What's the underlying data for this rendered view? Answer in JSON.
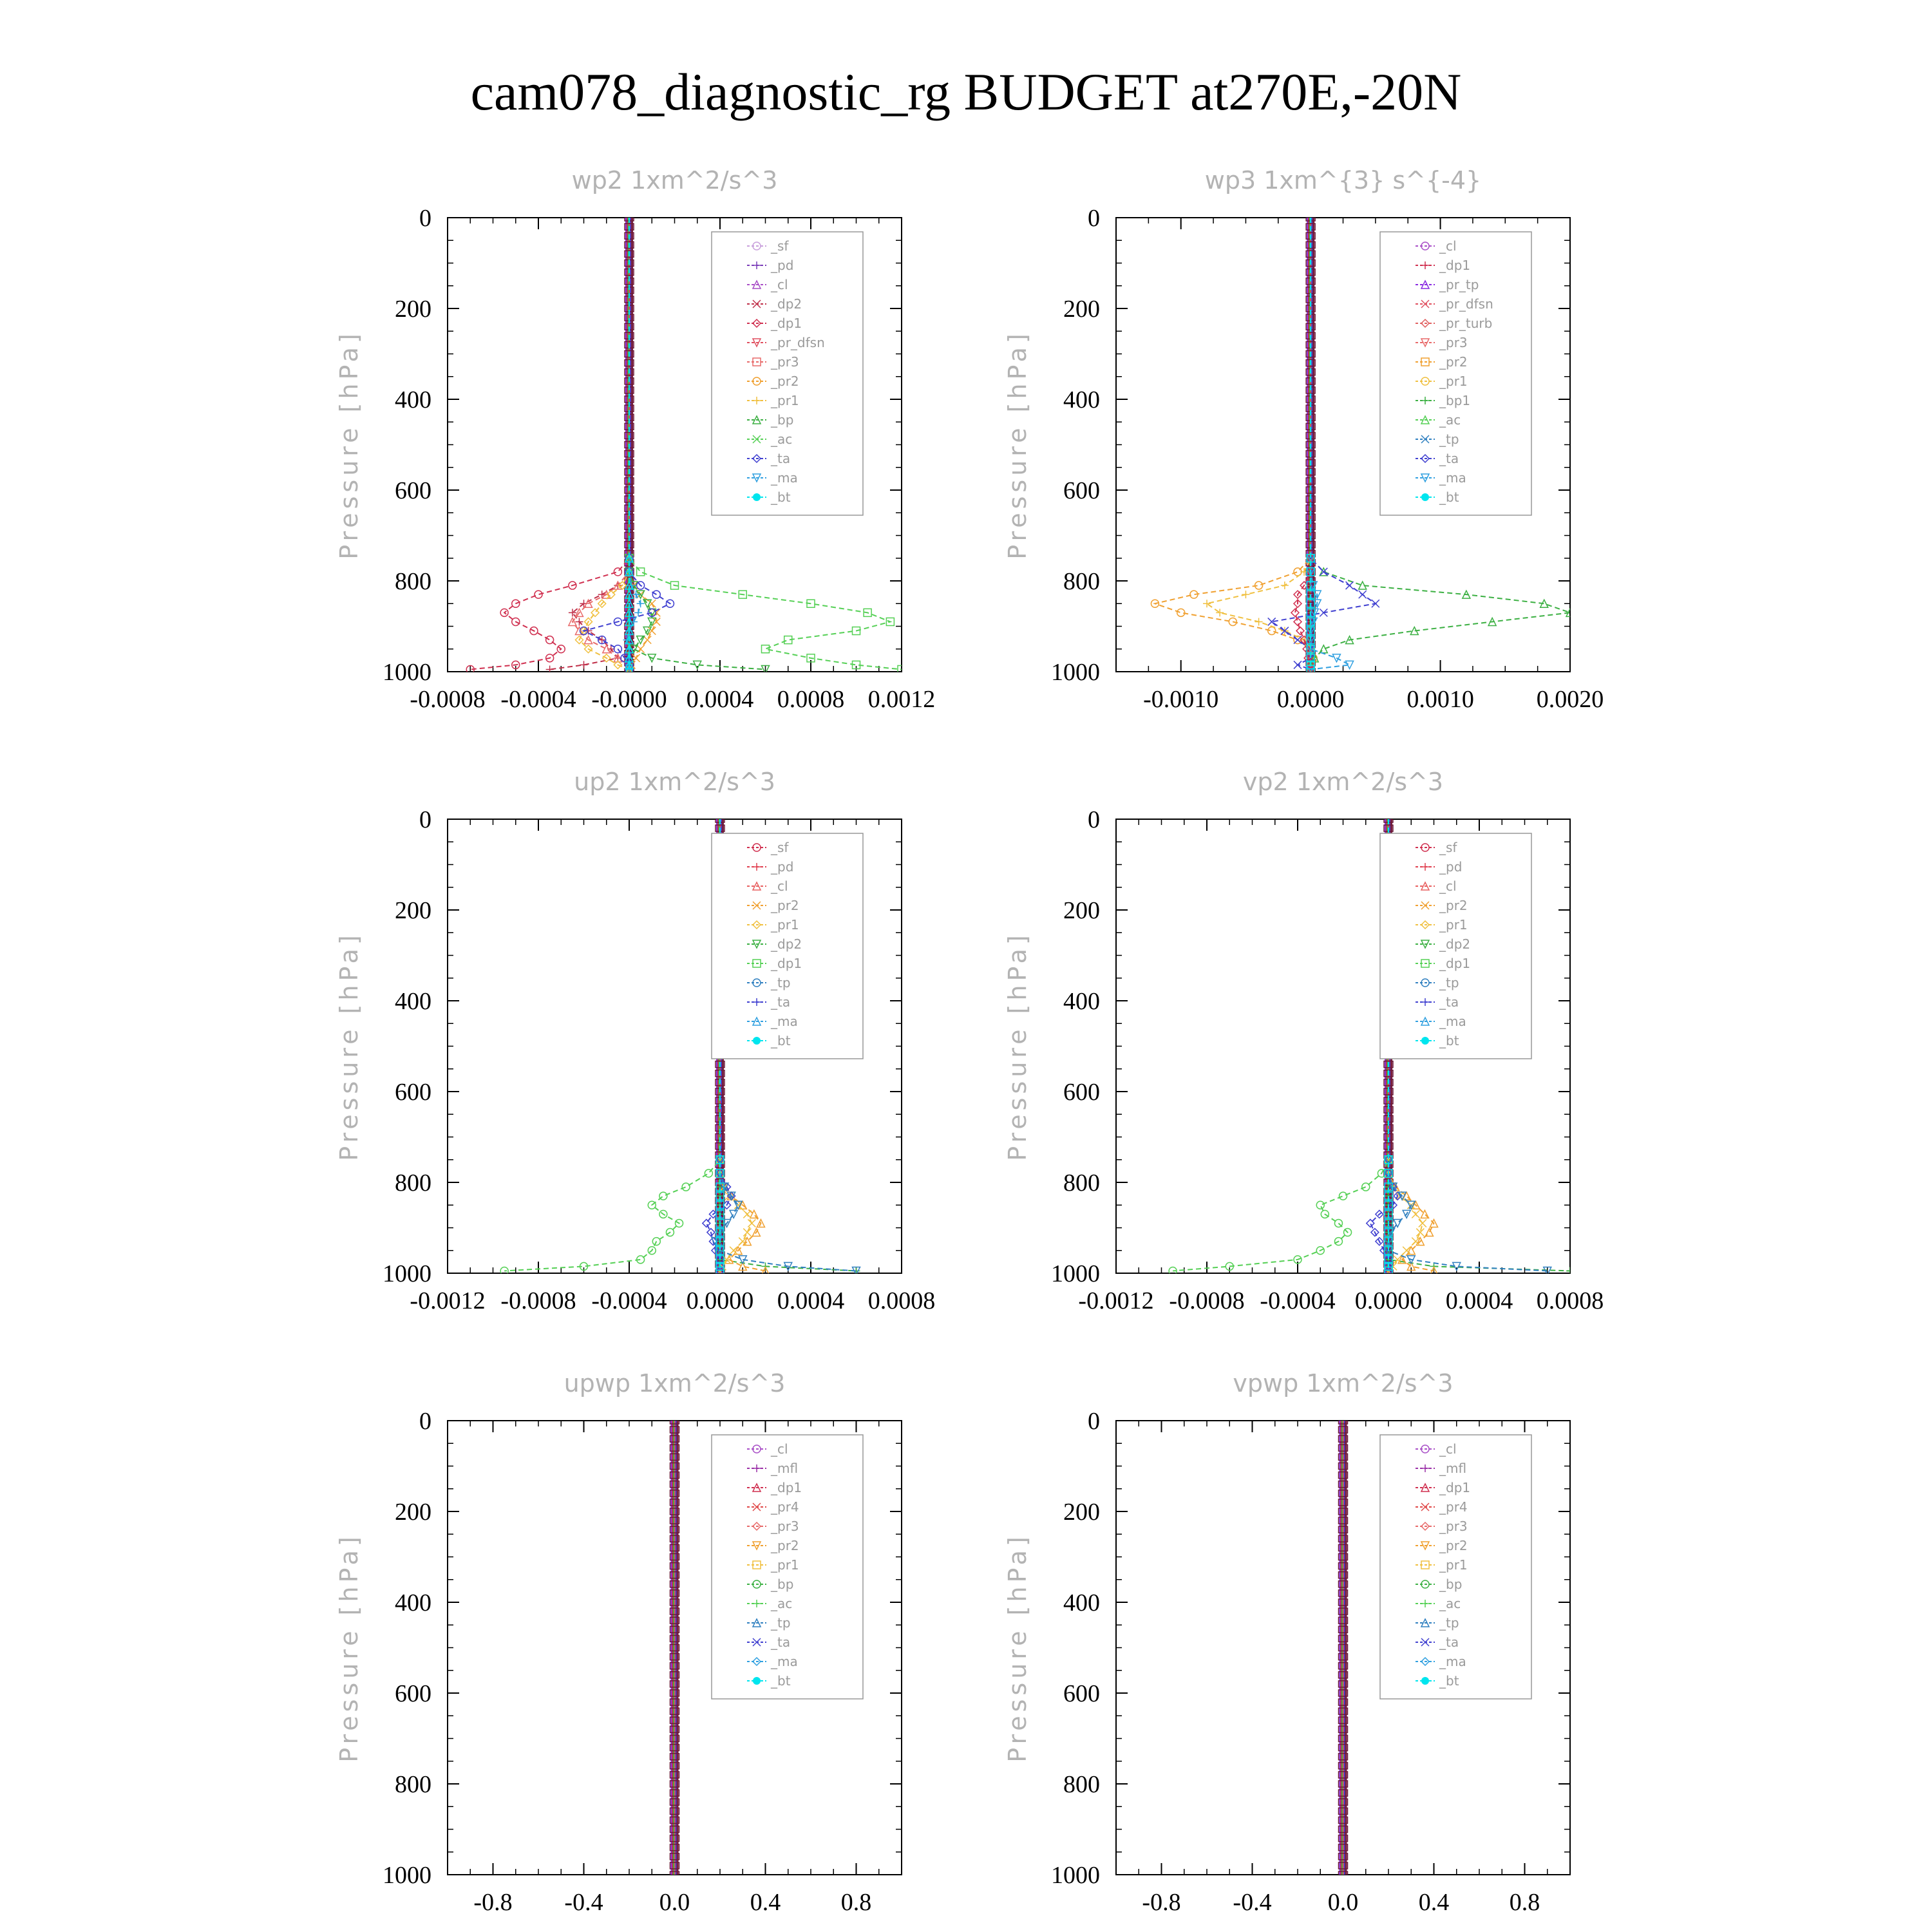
{
  "title": "cam078_diagnostic_rg  BUDGET at270E,-20N",
  "colors": {
    "_sf": "#c9a0dc",
    "_pd": "#7a3db8",
    "_cl": "#a94fc7",
    "_mfl": "#9b30a8",
    "_dp2": "#c0304a",
    "_dp1": "#d03050",
    "_pr_tp": "#8a2be2",
    "_pr_dfsn": "#e05060",
    "_pr_turb": "#e06060",
    "_pr4": "#e04848",
    "_pr3": "#e86a6a",
    "_pr2": "#f0a030",
    "_pr1": "#f0c040",
    "_bp": "#3cb043",
    "_bp1": "#3cb043",
    "_ac": "#55d055",
    "_tp": "#3080c0",
    "_ta": "#4040d0",
    "_ma": "#30a0e0",
    "_bt": "#00e5ee",
    "up_sf": "#d03050",
    "up_pd": "#e04050",
    "up_cl": "#e86060",
    "up_dp2": "#3cb043",
    "up_dp1": "#55d055"
  },
  "chart_data": [
    {
      "type": "line",
      "title": "wp2   1xm^2/s^3",
      "ylabel": "Pressure [hPa]",
      "ylim": [
        0,
        1000
      ],
      "y_inverted": true,
      "xlim": [
        -0.0008,
        0.0012
      ],
      "xticks": [
        "-0.0008",
        "-0.0004",
        "-0.0000",
        "0.0004",
        "0.0008",
        "0.0012"
      ],
      "xtick_values": [
        -0.0008,
        -0.0004,
        0,
        0.0004,
        0.0008,
        0.0012
      ],
      "yticks": [
        "0",
        "200",
        "400",
        "600",
        "800",
        "1000"
      ],
      "pressure": [
        750,
        780,
        810,
        830,
        850,
        870,
        890,
        910,
        930,
        950,
        970,
        985,
        995
      ],
      "legend": [
        "_sf",
        "_pd",
        "_cl",
        "_dp2",
        "_dp1",
        "_pr_dfsn",
        "_pr3",
        "_pr2",
        "_pr1",
        "_bp",
        "_ac",
        "_ta",
        "_ma",
        "_bt"
      ],
      "series": [
        {
          "name": "_dp1",
          "values": [
            0,
            -5e-05,
            -0.00025,
            -0.0004,
            -0.0005,
            -0.00055,
            -0.0005,
            -0.00042,
            -0.00035,
            -0.0003,
            -0.00035,
            -0.0005,
            -0.0007
          ]
        },
        {
          "name": "_dp2",
          "values": [
            0,
            0,
            -5e-05,
            -0.00012,
            -0.0002,
            -0.00025,
            -0.00022,
            -0.00018,
            -0.00012,
            -8e-05,
            -5e-05,
            -0.0002,
            -0.00035
          ]
        },
        {
          "name": "_pr3",
          "values": [
            0,
            0,
            -5e-05,
            -0.0001,
            -0.00018,
            -0.00022,
            -0.00025,
            -0.00022,
            -0.00018,
            -0.0001,
            -5e-05,
            0,
            0
          ]
        },
        {
          "name": "_pr2",
          "values": [
            0,
            0,
            2e-05,
            5e-05,
            0.0001,
            0.00012,
            0.00012,
            0.0001,
            8e-05,
            5e-05,
            3e-05,
            1e-05,
            0
          ]
        },
        {
          "name": "_pr1",
          "values": [
            0,
            0,
            -3e-05,
            -8e-05,
            -0.00012,
            -0.00015,
            -0.00018,
            -0.0002,
            -0.00022,
            -0.00018,
            -0.0001,
            -5e-05,
            0
          ]
        },
        {
          "name": "_bp",
          "values": [
            0,
            0,
            2e-05,
            5e-05,
            8e-05,
            0.0001,
            0.0001,
            8e-05,
            5e-05,
            2e-05,
            0.0001,
            0.0003,
            0.0006
          ]
        },
        {
          "name": "_ac",
          "values": [
            0,
            5e-05,
            0.0002,
            0.0005,
            0.0008,
            0.00105,
            0.00115,
            0.001,
            0.0007,
            0.0006,
            0.0008,
            0.001,
            0.0012
          ]
        },
        {
          "name": "_ta",
          "values": [
            0,
            0,
            5e-05,
            0.00012,
            0.00018,
            0.0001,
            -5e-05,
            -0.0002,
            -0.00012,
            -5e-05,
            -2e-05,
            0,
            0
          ]
        },
        {
          "name": "_ma",
          "values": [
            0,
            0,
            1e-05,
            3e-05,
            5e-05,
            4e-05,
            2e-05,
            0,
            -1e-05,
            0,
            0,
            0,
            0
          ]
        },
        {
          "name": "_bt",
          "values": [
            0,
            0,
            0,
            0,
            0,
            0,
            0,
            0,
            0,
            0,
            0,
            0,
            0
          ]
        }
      ]
    },
    {
      "type": "line",
      "title": "wp3   1xm^{3} s^{-4}",
      "ylabel": "Pressure [hPa]",
      "ylim": [
        0,
        1000
      ],
      "y_inverted": true,
      "xlim": [
        -0.0015,
        0.002
      ],
      "xticks": [
        "-0.0010",
        "0.0000",
        "0.0010",
        "0.0020"
      ],
      "xtick_values": [
        -0.001,
        0,
        0.001,
        0.002
      ],
      "yticks": [
        "0",
        "200",
        "400",
        "600",
        "800",
        "1000"
      ],
      "pressure": [
        750,
        780,
        810,
        830,
        850,
        870,
        890,
        910,
        930,
        950,
        970,
        985,
        995
      ],
      "legend": [
        "_cl",
        "_dp1",
        "_pr_tp",
        "_pr_dfsn",
        "_pr_turb",
        "_pr3",
        "_pr2",
        "_pr1",
        "_bp1",
        "_ac",
        "_tp",
        "_ta",
        "_ma",
        "_bt"
      ],
      "series": [
        {
          "name": "_pr2",
          "values": [
            0,
            -0.0001,
            -0.0004,
            -0.0009,
            -0.0012,
            -0.001,
            -0.0006,
            -0.0003,
            -0.0001,
            0,
            2e-05,
            0,
            0
          ]
        },
        {
          "name": "_pr1",
          "values": [
            0,
            -5e-05,
            -0.0002,
            -0.0005,
            -0.0008,
            -0.0007,
            -0.0004,
            -0.0002,
            -5e-05,
            0,
            0,
            0,
            0
          ]
        },
        {
          "name": "_bp1",
          "values": [
            0,
            0.0001,
            0.0004,
            0.0012,
            0.0018,
            0.002,
            0.0014,
            0.0008,
            0.0003,
            0.0001,
            3e-05,
            0,
            0
          ]
        },
        {
          "name": "_ta",
          "values": [
            0,
            0.0001,
            0.0003,
            0.0004,
            0.0005,
            0.0001,
            -0.0003,
            -0.0002,
            -0.0001,
            0,
            0,
            -0.0001,
            0
          ]
        },
        {
          "name": "_dp1",
          "values": [
            0,
            0,
            -5e-05,
            -0.0001,
            -0.0001,
            -0.00012,
            -0.0001,
            -8e-05,
            -5e-05,
            -3e-05,
            -2e-05,
            0,
            0
          ]
        },
        {
          "name": "_ma",
          "values": [
            0,
            0,
            2e-05,
            5e-05,
            5e-05,
            3e-05,
            2e-05,
            0,
            0,
            0,
            0.0002,
            0.0003,
            0
          ]
        },
        {
          "name": "_bt",
          "values": [
            0,
            0,
            0,
            0,
            0,
            0,
            0,
            0,
            0,
            0,
            0,
            0,
            0
          ]
        }
      ]
    },
    {
      "type": "line",
      "title": "up2   1xm^2/s^3",
      "ylabel": "Pressure [hPa]",
      "ylim": [
        0,
        1000
      ],
      "y_inverted": true,
      "xlim": [
        -0.0012,
        0.0008
      ],
      "xticks": [
        "-0.0012",
        "-0.0008",
        "-0.0004",
        "0.0000",
        "0.0004",
        "0.0008"
      ],
      "xtick_values": [
        -0.0012,
        -0.0008,
        -0.0004,
        0,
        0.0004,
        0.0008
      ],
      "yticks": [
        "0",
        "200",
        "400",
        "600",
        "800",
        "1000"
      ],
      "pressure": [
        750,
        780,
        810,
        830,
        850,
        870,
        890,
        910,
        930,
        950,
        970,
        985,
        995
      ],
      "legend": [
        "_sf",
        "_pd",
        "_cl",
        "_pr2",
        "_pr1",
        "_dp2",
        "_dp1",
        "_tp",
        "_ta",
        "_ma",
        "_bt"
      ],
      "series": [
        {
          "name": "_dp1",
          "values": [
            0,
            -5e-05,
            -0.00015,
            -0.00025,
            -0.0003,
            -0.00025,
            -0.00018,
            -0.00022,
            -0.00028,
            -0.0003,
            -0.00035,
            -0.0006,
            -0.00095
          ]
        },
        {
          "name": "_dp2",
          "values": [
            0,
            0,
            0,
            0,
            0,
            0,
            0,
            0,
            0,
            0,
            0,
            0.0002,
            0.0006
          ]
        },
        {
          "name": "_pr2",
          "values": [
            0,
            0,
            2e-05,
            5e-05,
            0.0001,
            0.00015,
            0.00018,
            0.00016,
            0.00012,
            8e-05,
            4e-05,
            0.0001,
            0.0002
          ]
        },
        {
          "name": "_pr1",
          "values": [
            0,
            0,
            2e-05,
            4e-05,
            8e-05,
            0.00012,
            0.00014,
            0.00012,
            0.0001,
            6e-05,
            3e-05,
            1e-05,
            0
          ]
        },
        {
          "name": "_ta",
          "values": [
            0,
            0,
            3e-05,
            5e-05,
            3e-05,
            -3e-05,
            -6e-05,
            -4e-05,
            -3e-05,
            -2e-05,
            0,
            0,
            0
          ]
        },
        {
          "name": "_tp",
          "values": [
            0,
            0,
            2e-05,
            5e-05,
            8e-05,
            6e-05,
            3e-05,
            0,
            -2e-05,
            0,
            0.0001,
            0.0003,
            0.0006
          ]
        },
        {
          "name": "_bt",
          "values": [
            0,
            0,
            0,
            0,
            0,
            0,
            0,
            0,
            0,
            0,
            0,
            0,
            0
          ]
        }
      ]
    },
    {
      "type": "line",
      "title": "vp2   1xm^2/s^3",
      "ylabel": "Pressure [hPa]",
      "ylim": [
        0,
        1000
      ],
      "y_inverted": true,
      "xlim": [
        -0.0012,
        0.0008
      ],
      "xticks": [
        "-0.0012",
        "-0.0008",
        "-0.0004",
        "0.0000",
        "0.0004",
        "0.0008"
      ],
      "xtick_values": [
        -0.0012,
        -0.0008,
        -0.0004,
        0,
        0.0004,
        0.0008
      ],
      "yticks": [
        "0",
        "200",
        "400",
        "600",
        "800",
        "1000"
      ],
      "pressure": [
        750,
        780,
        810,
        830,
        850,
        870,
        890,
        910,
        930,
        950,
        970,
        985,
        995
      ],
      "legend": [
        "_sf",
        "_pd",
        "_cl",
        "_pr2",
        "_pr1",
        "_dp2",
        "_dp1",
        "_tp",
        "_ta",
        "_ma",
        "_bt"
      ],
      "series": [
        {
          "name": "_dp1",
          "values": [
            0,
            -3e-05,
            -0.0001,
            -0.0002,
            -0.0003,
            -0.00028,
            -0.00022,
            -0.00018,
            -0.00022,
            -0.0003,
            -0.0004,
            -0.0007,
            -0.00095
          ]
        },
        {
          "name": "_dp2",
          "values": [
            0,
            0,
            0,
            0,
            0,
            0,
            0,
            0,
            0,
            0,
            0,
            0.0002,
            0.0008
          ]
        },
        {
          "name": "_pr2",
          "values": [
            0,
            0,
            3e-05,
            8e-05,
            0.00012,
            0.00016,
            0.0002,
            0.00018,
            0.00014,
            0.0001,
            6e-05,
            0.0001,
            0.0002
          ]
        },
        {
          "name": "_pr1",
          "values": [
            0,
            0,
            2e-05,
            5e-05,
            0.0001,
            0.00012,
            0.00015,
            0.00014,
            0.00012,
            8e-05,
            4e-05,
            2e-05,
            0
          ]
        },
        {
          "name": "_ta",
          "values": [
            0,
            0,
            2e-05,
            4e-05,
            2e-05,
            -4e-05,
            -8e-05,
            -6e-05,
            -4e-05,
            -2e-05,
            0,
            0,
            0
          ]
        },
        {
          "name": "_tp",
          "values": [
            0,
            0,
            2e-05,
            6e-05,
            0.0001,
            8e-05,
            4e-05,
            1e-05,
            0,
            0,
            0.0001,
            0.0003,
            0.0007
          ]
        },
        {
          "name": "_bt",
          "values": [
            0,
            0,
            0,
            0,
            0,
            0,
            0,
            0,
            0,
            0,
            0,
            0,
            0
          ]
        }
      ]
    },
    {
      "type": "line",
      "title": "upwp   1xm^2/s^3",
      "ylabel": "Pressure [hPa]",
      "ylim": [
        0,
        1000
      ],
      "y_inverted": true,
      "xlim": [
        -1,
        1
      ],
      "xticks": [
        "-0.8",
        "-0.4",
        "0.0",
        "0.4",
        "0.8"
      ],
      "xtick_values": [
        -0.8,
        -0.4,
        0,
        0.4,
        0.8
      ],
      "yticks": [
        "0",
        "200",
        "400",
        "600",
        "800",
        "1000"
      ],
      "pressure": [],
      "legend": [
        "_cl",
        "_mfl",
        "_dp1",
        "_pr4",
        "_pr3",
        "_pr2",
        "_pr1",
        "_bp",
        "_ac",
        "_tp",
        "_ta",
        "_ma",
        "_bt"
      ],
      "series": []
    },
    {
      "type": "line",
      "title": "vpwp   1xm^2/s^3",
      "ylabel": "Pressure [hPa]",
      "ylim": [
        0,
        1000
      ],
      "y_inverted": true,
      "xlim": [
        -1,
        1
      ],
      "xticks": [
        "-0.8",
        "-0.4",
        "0.0",
        "0.4",
        "0.8"
      ],
      "xtick_values": [
        -0.8,
        -0.4,
        0,
        0.4,
        0.8
      ],
      "yticks": [
        "0",
        "200",
        "400",
        "600",
        "800",
        "1000"
      ],
      "pressure": [],
      "legend": [
        "_cl",
        "_mfl",
        "_dp1",
        "_pr4",
        "_pr3",
        "_pr2",
        "_pr1",
        "_bp",
        "_ac",
        "_tp",
        "_ta",
        "_ma",
        "_bt"
      ],
      "series": []
    }
  ]
}
